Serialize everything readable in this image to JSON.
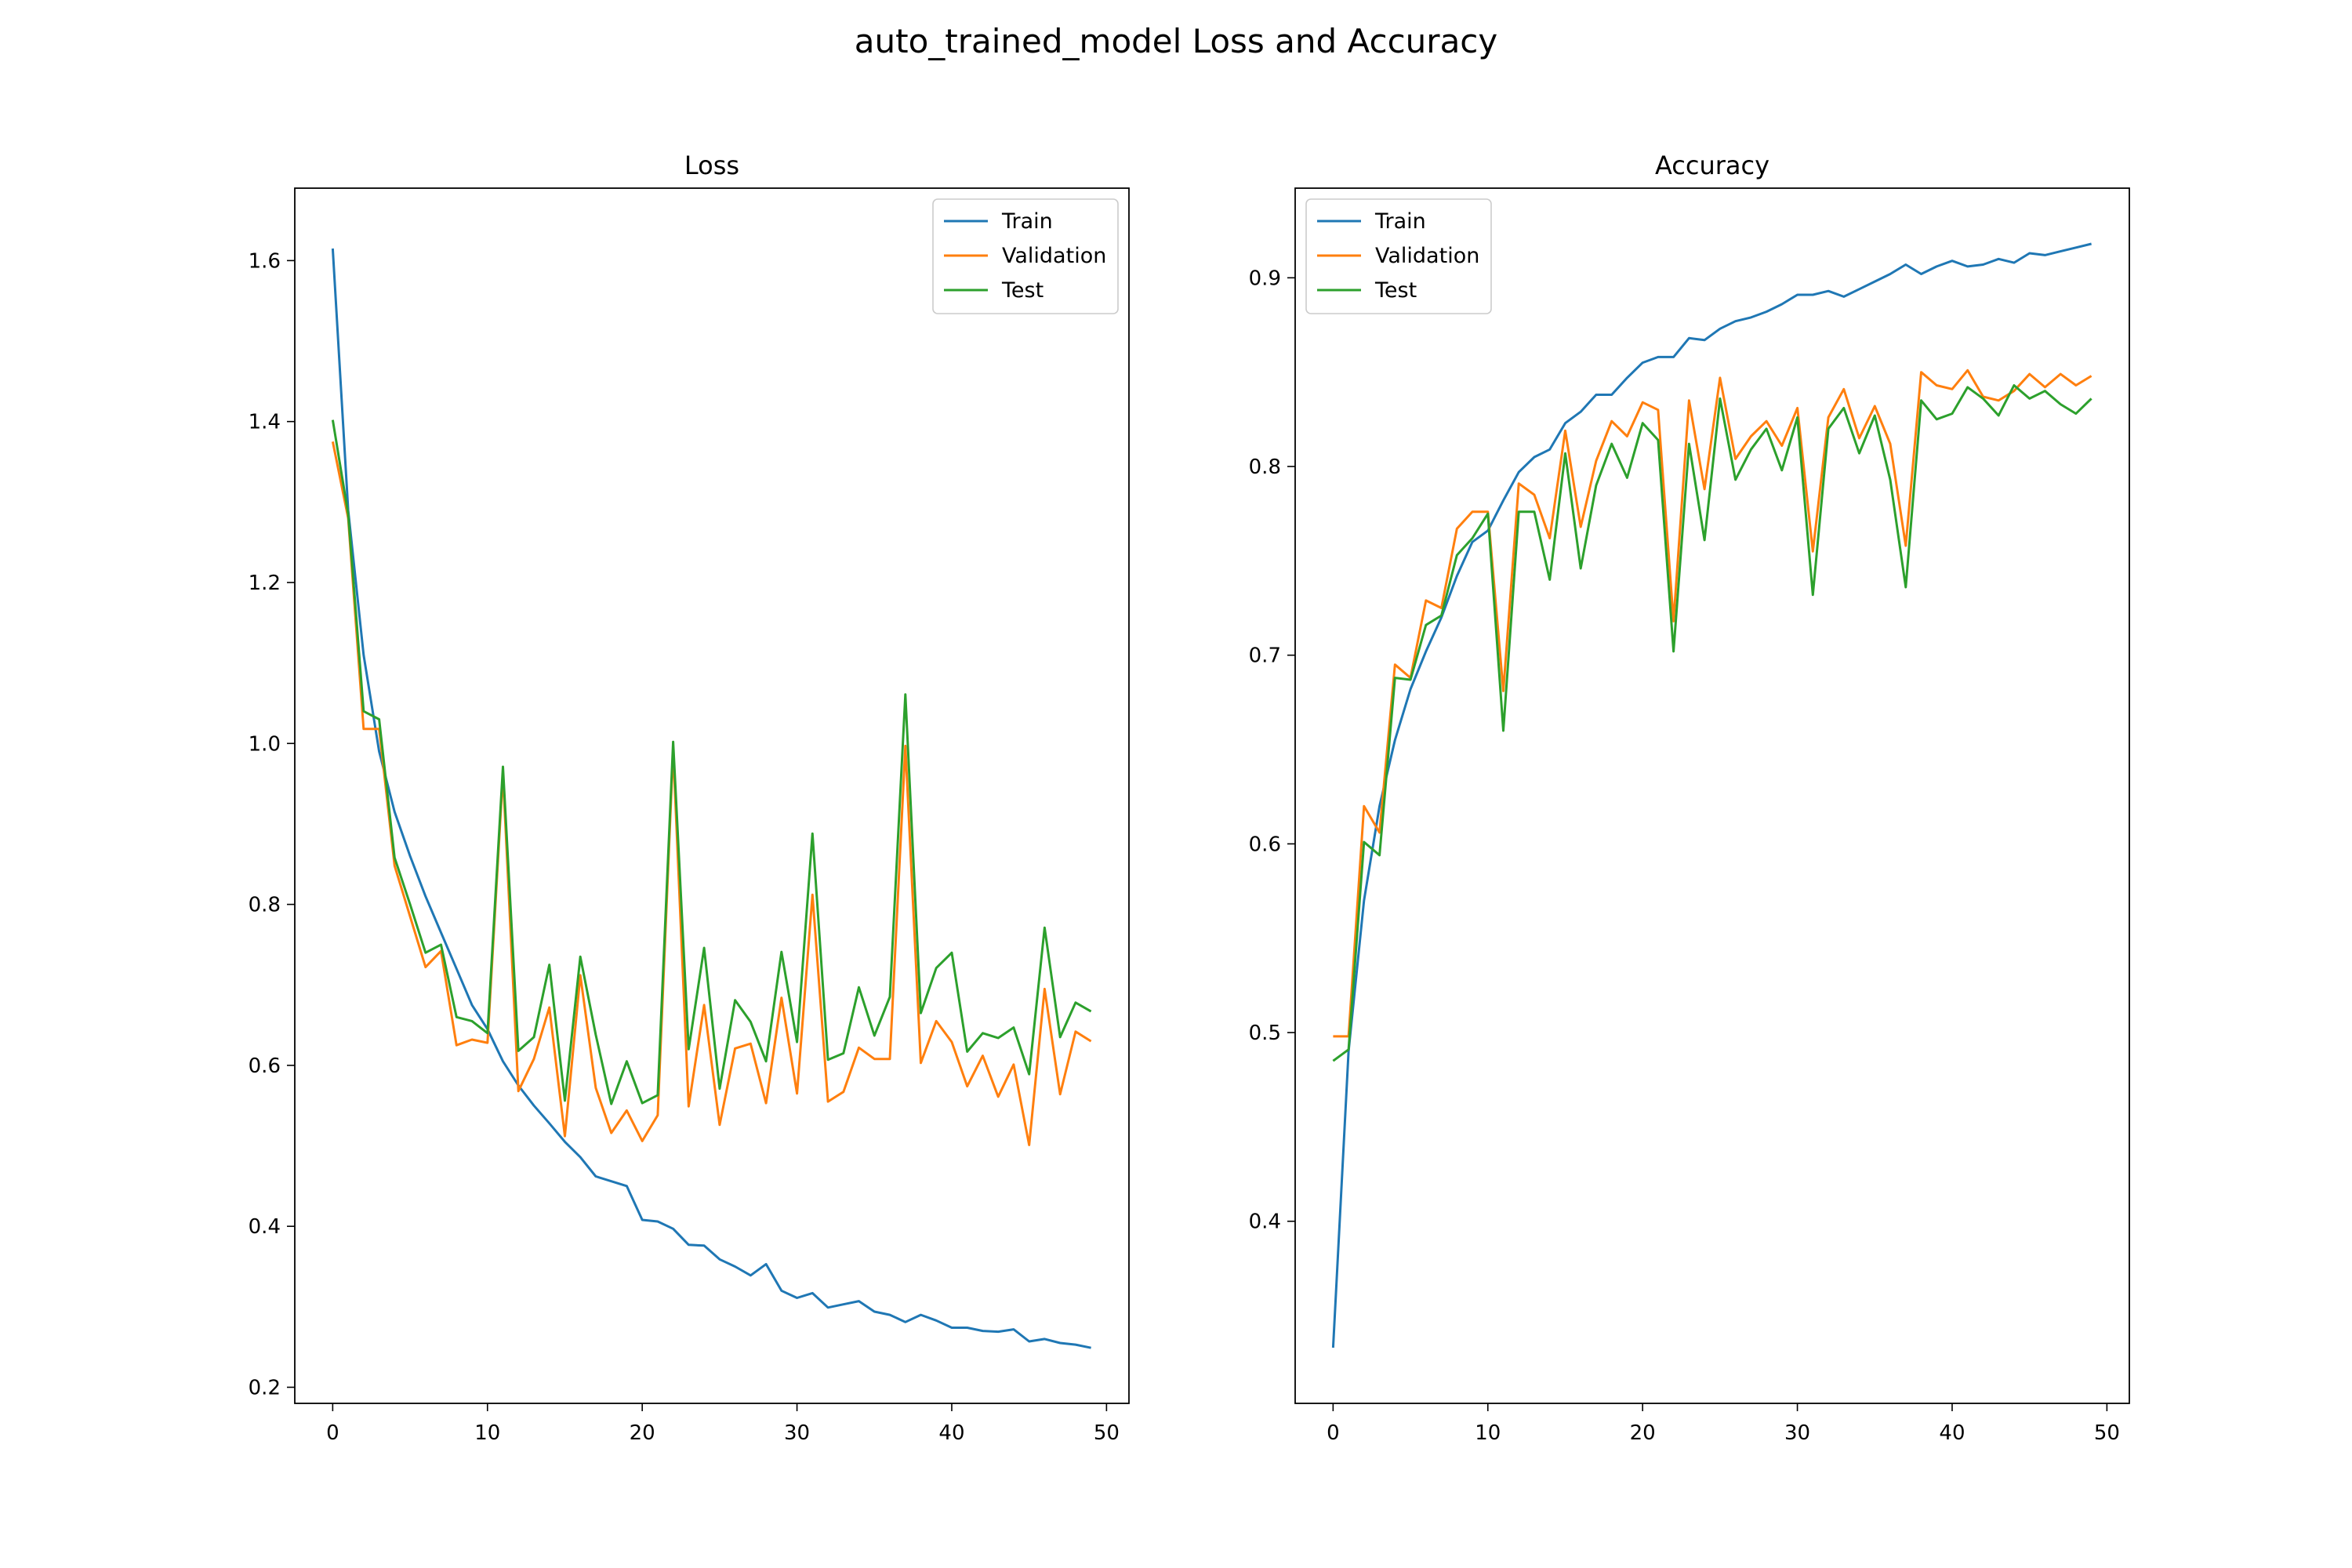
{
  "figure": {
    "title": "auto_trained_model Loss and Accuracy"
  },
  "colors": {
    "Train": "#1f77b4",
    "Validation": "#ff7f0e",
    "Test": "#2ca02c"
  },
  "chart_data": [
    {
      "type": "line",
      "title": "Loss",
      "xlabel": "",
      "ylabel": "",
      "xlim": [
        -2.45,
        51.45
      ],
      "ylim": [
        0.18,
        1.69
      ],
      "xticks": [
        0,
        10,
        20,
        30,
        40,
        50
      ],
      "yticks": [
        0.2,
        0.4,
        0.6,
        0.8,
        1.0,
        1.2,
        1.4,
        1.6
      ],
      "ytick_labels": [
        "0.2",
        "0.4",
        "0.6",
        "0.8",
        "1.0",
        "1.2",
        "1.4",
        "1.6"
      ],
      "legend_loc": "upper right",
      "x": [
        0,
        1,
        2,
        3,
        4,
        5,
        6,
        7,
        8,
        9,
        10,
        11,
        12,
        13,
        14,
        15,
        16,
        17,
        18,
        19,
        20,
        21,
        22,
        23,
        24,
        25,
        26,
        27,
        28,
        29,
        30,
        31,
        32,
        33,
        34,
        35,
        36,
        37,
        38,
        39,
        40,
        41,
        42,
        43,
        44,
        45,
        46,
        47,
        48,
        49
      ],
      "series": [
        {
          "name": "Train",
          "values": [
            1.615,
            1.29,
            1.11,
            0.99,
            0.915,
            0.86,
            0.81,
            0.765,
            0.72,
            0.675,
            0.645,
            0.605,
            0.575,
            0.55,
            0.528,
            0.505,
            0.486,
            0.462,
            0.456,
            0.45,
            0.408,
            0.406,
            0.397,
            0.377,
            0.376,
            0.359,
            0.35,
            0.339,
            0.353,
            0.32,
            0.311,
            0.317,
            0.299,
            0.303,
            0.307,
            0.294,
            0.29,
            0.281,
            0.29,
            0.283,
            0.274,
            0.274,
            0.27,
            0.269,
            0.272,
            0.257,
            0.26,
            0.255,
            0.253,
            0.249
          ]
        },
        {
          "name": "Validation",
          "values": [
            1.375,
            1.28,
            1.018,
            1.018,
            0.848,
            0.785,
            0.722,
            0.742,
            0.625,
            0.632,
            0.628,
            0.962,
            0.568,
            0.608,
            0.672,
            0.512,
            0.712,
            0.572,
            0.516,
            0.544,
            0.506,
            0.538,
            0.992,
            0.549,
            0.675,
            0.526,
            0.621,
            0.627,
            0.553,
            0.684,
            0.565,
            0.812,
            0.555,
            0.567,
            0.622,
            0.608,
            0.608,
            0.997,
            0.603,
            0.655,
            0.629,
            0.574,
            0.612,
            0.561,
            0.601,
            0.501,
            0.695,
            0.564,
            0.642,
            0.63
          ]
        },
        {
          "name": "Test",
          "values": [
            1.402,
            1.285,
            1.04,
            1.03,
            0.858,
            0.8,
            0.74,
            0.75,
            0.66,
            0.655,
            0.64,
            0.971,
            0.618,
            0.635,
            0.725,
            0.556,
            0.735,
            0.638,
            0.552,
            0.605,
            0.553,
            0.563,
            1.002,
            0.62,
            0.746,
            0.571,
            0.681,
            0.654,
            0.605,
            0.741,
            0.629,
            0.888,
            0.607,
            0.615,
            0.697,
            0.637,
            0.685,
            1.061,
            0.665,
            0.721,
            0.74,
            0.617,
            0.64,
            0.634,
            0.647,
            0.589,
            0.771,
            0.635,
            0.678,
            0.667
          ]
        }
      ]
    },
    {
      "type": "line",
      "title": "Accuracy",
      "xlabel": "",
      "ylabel": "",
      "xlim": [
        -2.45,
        51.45
      ],
      "ylim": [
        0.3035,
        0.9475
      ],
      "xticks": [
        0,
        10,
        20,
        30,
        40,
        50
      ],
      "yticks": [
        0.4,
        0.5,
        0.6,
        0.7,
        0.8,
        0.9
      ],
      "ytick_labels": [
        "0.4",
        "0.5",
        "0.6",
        "0.7",
        "0.8",
        "0.9"
      ],
      "legend_loc": "upper left",
      "x": [
        0,
        1,
        2,
        3,
        4,
        5,
        6,
        7,
        8,
        9,
        10,
        11,
        12,
        13,
        14,
        15,
        16,
        17,
        18,
        19,
        20,
        21,
        22,
        23,
        24,
        25,
        26,
        27,
        28,
        29,
        30,
        31,
        32,
        33,
        34,
        35,
        36,
        37,
        38,
        39,
        40,
        41,
        42,
        43,
        44,
        45,
        46,
        47,
        48,
        49
      ],
      "series": [
        {
          "name": "Train",
          "values": [
            0.333,
            0.49,
            0.57,
            0.62,
            0.655,
            0.682,
            0.702,
            0.72,
            0.742,
            0.76,
            0.766,
            0.782,
            0.797,
            0.805,
            0.809,
            0.823,
            0.829,
            0.838,
            0.838,
            0.847,
            0.855,
            0.858,
            0.858,
            0.868,
            0.867,
            0.873,
            0.877,
            0.879,
            0.882,
            0.886,
            0.891,
            0.891,
            0.893,
            0.89,
            0.894,
            0.898,
            0.902,
            0.907,
            0.902,
            0.906,
            0.909,
            0.906,
            0.907,
            0.91,
            0.908,
            0.913,
            0.912,
            0.914,
            0.916,
            0.918
          ]
        },
        {
          "name": "Validation",
          "values": [
            0.498,
            0.498,
            0.62,
            0.606,
            0.695,
            0.688,
            0.729,
            0.725,
            0.767,
            0.776,
            0.776,
            0.681,
            0.791,
            0.785,
            0.762,
            0.819,
            0.768,
            0.803,
            0.824,
            0.816,
            0.834,
            0.83,
            0.718,
            0.835,
            0.788,
            0.847,
            0.804,
            0.816,
            0.824,
            0.811,
            0.831,
            0.755,
            0.826,
            0.841,
            0.815,
            0.832,
            0.812,
            0.758,
            0.85,
            0.843,
            0.841,
            0.851,
            0.837,
            0.835,
            0.84,
            0.849,
            0.842,
            0.849,
            0.843,
            0.848
          ]
        },
        {
          "name": "Test",
          "values": [
            0.485,
            0.491,
            0.601,
            0.594,
            0.688,
            0.687,
            0.716,
            0.721,
            0.753,
            0.762,
            0.775,
            0.66,
            0.776,
            0.776,
            0.74,
            0.807,
            0.746,
            0.79,
            0.812,
            0.794,
            0.823,
            0.814,
            0.702,
            0.812,
            0.761,
            0.836,
            0.793,
            0.809,
            0.82,
            0.798,
            0.826,
            0.732,
            0.82,
            0.831,
            0.807,
            0.827,
            0.793,
            0.736,
            0.835,
            0.825,
            0.828,
            0.842,
            0.836,
            0.827,
            0.843,
            0.836,
            0.84,
            0.833,
            0.828,
            0.836
          ]
        }
      ]
    }
  ]
}
